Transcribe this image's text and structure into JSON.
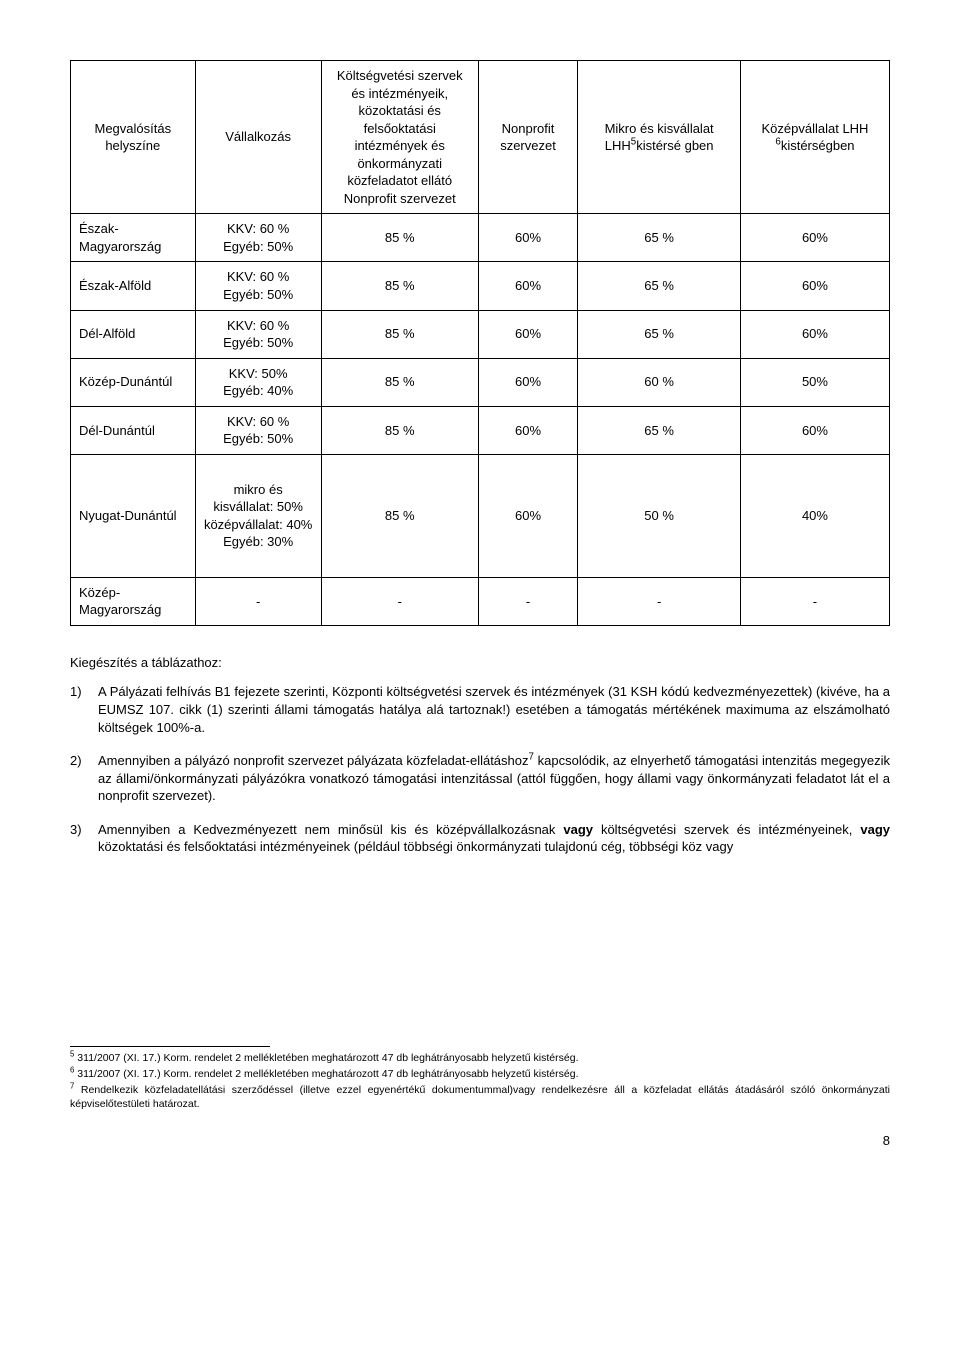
{
  "table": {
    "headers": [
      "Megvalósítás helyszíne",
      "Vállalkozás",
      "Költségvetési szervek és intézményeik, közoktatási és felsőoktatási intézmények és önkormányzati közfeladatot ellátó Nonprofit szervezet",
      "Nonprofit szervezet",
      "Mikro és kisvállalat LHH",
      "kistérsé gben",
      "Középvállalat LHH ",
      "kistérségben"
    ],
    "rows": [
      {
        "r": "Észak-Magyarország",
        "v1": "KKV: 60 %",
        "v2": "Egyéb: 50%",
        "c3": "85 %",
        "c4": "60%",
        "c5": "65 %",
        "c6": "60%"
      },
      {
        "r": "Észak-Alföld",
        "v1": "KKV: 60 %",
        "v2": "Egyéb: 50%",
        "c3": "85 %",
        "c4": "60%",
        "c5": "65 %",
        "c6": "60%"
      },
      {
        "r": "Dél-Alföld",
        "v1": "KKV: 60 %",
        "v2": "Egyéb: 50%",
        "c3": "85 %",
        "c4": "60%",
        "c5": "65 %",
        "c6": "60%"
      },
      {
        "r": "Közép-Dunántúl",
        "v1": "KKV: 50%",
        "v2": "Egyéb: 40%",
        "c3": "85 %",
        "c4": "60%",
        "c5": "60 %",
        "c6": "50%"
      },
      {
        "r": "Dél-Dunántúl",
        "v1": "KKV: 60 %",
        "v2": "Egyéb: 50%",
        "c3": "85 %",
        "c4": "60%",
        "c5": "65 %",
        "c6": "60%"
      },
      {
        "r": "Nyugat-Dunántúl",
        "v1": "mikro és kisvállalat: 50%",
        "v2": "középvállalat: 40%",
        "v3": "Egyéb: 30%",
        "c3": "85 %",
        "c4": "60%",
        "c5": "50 %",
        "c6": "40%"
      },
      {
        "r": "Közép-Magyarország",
        "v1": "-",
        "c3": "-",
        "c4": "-",
        "c5": "-",
        "c6": "-"
      }
    ],
    "sup5": "5",
    "sup6": "6"
  },
  "intro": "Kiegészítés a táblázathoz:",
  "items": [
    {
      "marker": "1)",
      "html": "A Pályázati felhívás B1 fejezete szerinti, Központi költségvetési szervek és intézmények (31 KSH kódú kedvezményezettek) (kivéve, ha a EUMSZ 107. cikk (1) szerinti állami támogatás hatálya alá tartoznak!) esetében a támogatás mértékének maximuma az elszámolható költségek 100%-a."
    },
    {
      "marker": "2)",
      "html": "Amennyiben a pályázó nonprofit szervezet pályázata közfeladat-ellátáshoz<sup>7</sup> kapcsolódik, az elnyerhető támogatási intenzitás megegyezik az állami/önkormányzati pályázókra vonatkozó támogatási intenzitással (attól függően, hogy állami vagy önkormányzati feladatot lát el a nonprofit szervezet)."
    },
    {
      "marker": "3)",
      "html": "Amennyiben a Kedvezményezett nem minősül kis és középvállalkozásnak <b>vagy</b> költségvetési szervek és intézményeinek, <b>vagy</b> közoktatási és felsőoktatási intézményeinek (például többségi önkormányzati tulajdonú cég, többségi köz vagy"
    }
  ],
  "footnotes": [
    {
      "n": "5",
      "t": "311/2007 (XI. 17.) Korm. rendelet 2 mellékletében meghatározott 47 db leghátrányosabb helyzetű kistérség."
    },
    {
      "n": "6",
      "t": "311/2007 (XI. 17.) Korm. rendelet 2 mellékletében meghatározott 47 db leghátrányosabb helyzetű kistérség."
    },
    {
      "n": "7",
      "t": "Rendelkezik közfeladatellátási szerződéssel (illetve ezzel egyenértékű dokumentummal)vagy rendelkezésre áll a közfeladat ellátás átadásáról szóló önkormányzati képviselőtestületi határozat."
    }
  ],
  "pagenum": "8"
}
